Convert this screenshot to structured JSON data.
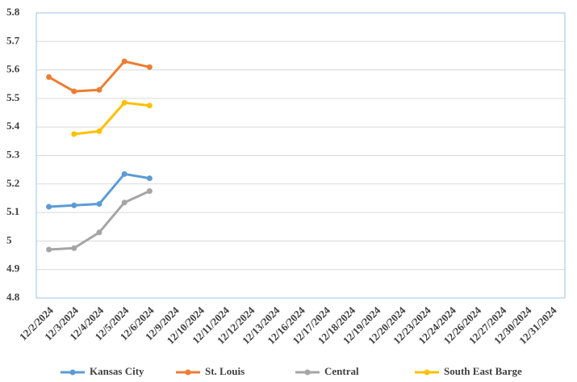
{
  "chart_data": {
    "type": "line",
    "categories": [
      "12/2/2024",
      "12/3/2024",
      "12/4/2024",
      "12/5/2024",
      "12/6/2024",
      "12/9/2024",
      "12/10/2024",
      "12/11/2024",
      "12/12/2024",
      "12/13/2024",
      "12/16/2024",
      "12/17/2024",
      "12/18/2024",
      "12/19/2024",
      "12/20/2024",
      "12/23/2024",
      "12/24/2024",
      "12/26/2024",
      "12/27/2024",
      "12/30/2024",
      "12/31/2024"
    ],
    "series": [
      {
        "name": "Kansas City",
        "color": "#5b9bd5",
        "values": [
          5.12,
          5.125,
          5.13,
          5.235,
          5.22,
          null,
          null,
          null,
          null,
          null,
          null,
          null,
          null,
          null,
          null,
          null,
          null,
          null,
          null,
          null,
          null
        ]
      },
      {
        "name": "St. Louis",
        "color": "#ed7d31",
        "values": [
          5.575,
          5.525,
          5.53,
          5.63,
          5.61,
          null,
          null,
          null,
          null,
          null,
          null,
          null,
          null,
          null,
          null,
          null,
          null,
          null,
          null,
          null,
          null
        ]
      },
      {
        "name": "Central",
        "color": "#a5a5a5",
        "values": [
          4.97,
          4.975,
          5.03,
          5.135,
          5.175,
          null,
          null,
          null,
          null,
          null,
          null,
          null,
          null,
          null,
          null,
          null,
          null,
          null,
          null,
          null,
          null
        ]
      },
      {
        "name": "South East Barge",
        "color": "#ffc000",
        "values": [
          null,
          5.375,
          5.385,
          5.485,
          5.475,
          null,
          null,
          null,
          null,
          null,
          null,
          null,
          null,
          null,
          null,
          null,
          null,
          null,
          null,
          null,
          null
        ]
      }
    ],
    "ylim": [
      4.8,
      5.8
    ],
    "yticks": [
      4.8,
      4.9,
      5,
      5.1,
      5.2,
      5.3,
      5.4,
      5.5,
      5.6,
      5.7,
      5.8
    ],
    "grid": true,
    "legend": "bottom"
  }
}
